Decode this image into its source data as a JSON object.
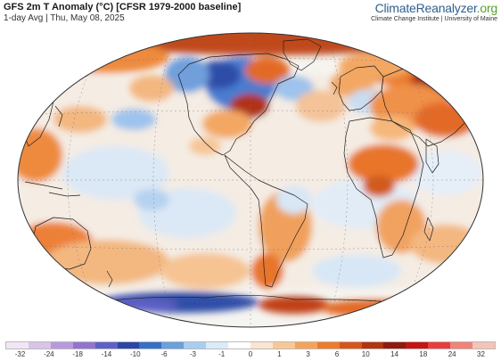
{
  "header": {
    "title": "GFS 2m T Anomaly (°C) [CFSR 1979-2000 baseline]",
    "subtitle": "1-day Avg | Thu, May 08, 2025"
  },
  "brand": {
    "logo_part1": "Climate",
    "logo_part2": "Reanalyzer",
    "logo_part3": ".org",
    "org_line": "Climate Change Institute | University of Maine"
  },
  "legend": {
    "tick_labels": [
      "-32",
      "-24",
      "-18",
      "-14",
      "-10",
      "-6",
      "-3",
      "-1",
      "0",
      "1",
      "3",
      "6",
      "10",
      "14",
      "18",
      "24",
      "32"
    ],
    "colors": [
      "#f1e6f4",
      "#d9c3e8",
      "#b999dc",
      "#9274cf",
      "#5d61c6",
      "#2c45a6",
      "#3470c5",
      "#6aa0dc",
      "#a9cdf0",
      "#dbeaf8",
      "#ffffff",
      "#fbe5cf",
      "#f9c796",
      "#f4a35b",
      "#ee7a2c",
      "#d9541a",
      "#b33312",
      "#8f1a0e",
      "#c41414",
      "#e83d3d",
      "#f0837a",
      "#f6c3b7"
    ]
  },
  "map": {
    "projection": "Robinson",
    "ocean_color": "#f4f6fa",
    "land_outline_color": "#222222"
  }
}
